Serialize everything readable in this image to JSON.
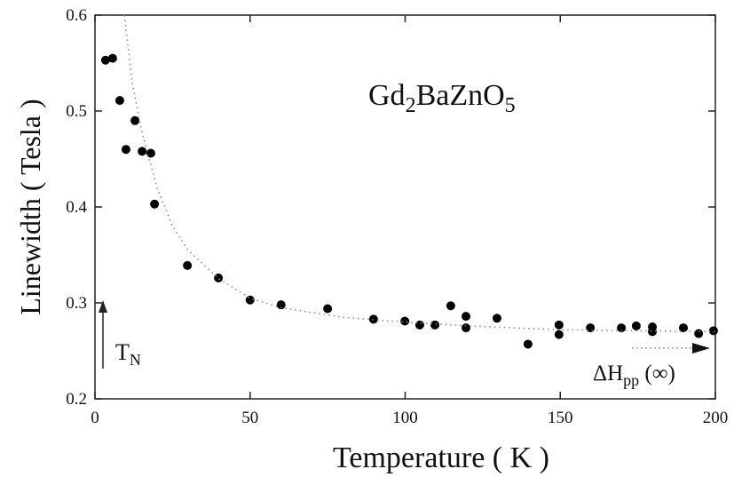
{
  "chart_data": {
    "type": "scatter",
    "title": [
      "Gd",
      "2",
      "BaZnO",
      "5"
    ],
    "x_label": "Temperature ( K )",
    "y_label": "Linewidth ( Tesla )",
    "annotations": [
      [
        "T",
        "N"
      ],
      [
        "ΔH",
        "pp",
        " (∞)"
      ]
    ],
    "xlim": [
      0,
      200
    ],
    "ylim": [
      0.2,
      0.6
    ],
    "xticks": [
      0,
      50,
      100,
      150,
      200
    ],
    "yticks": [
      0.2,
      0.3,
      0.4,
      0.5,
      0.6
    ],
    "series": [
      {
        "color": "#000000",
        "x": [
          3.4,
          5.7,
          8,
          10,
          12.9,
          15.2,
          18,
          19.2,
          29.8,
          39.8,
          50,
          60,
          75,
          89.8,
          99.9,
          104.7,
          109.6,
          114.7,
          119.6,
          119.6,
          129.6,
          139.6,
          149.6,
          149.6,
          159.7,
          169.7,
          174.5,
          179.7,
          179.7,
          189.7,
          194.6,
          199.4
        ],
        "values": [
          0.553,
          0.555,
          0.511,
          0.46,
          0.49,
          0.458,
          0.456,
          0.403,
          0.339,
          0.326,
          0.303,
          0.298,
          0.294,
          0.283,
          0.281,
          0.277,
          0.277,
          0.297,
          0.286,
          0.274,
          0.284,
          0.257,
          0.277,
          0.267,
          0.274,
          0.274,
          0.276,
          0.275,
          0.27,
          0.274,
          0.268,
          0.271
        ]
      },
      {
        "type": "line",
        "color": "#888888",
        "x": [
          9.5,
          12,
          15,
          20,
          25,
          30,
          40,
          50,
          60,
          80,
          100,
          120,
          150,
          200
        ],
        "values": [
          0.6,
          0.53,
          0.48,
          0.42,
          0.38,
          0.355,
          0.325,
          0.305,
          0.295,
          0.285,
          0.28,
          0.276,
          0.272,
          0.27
        ]
      }
    ]
  }
}
